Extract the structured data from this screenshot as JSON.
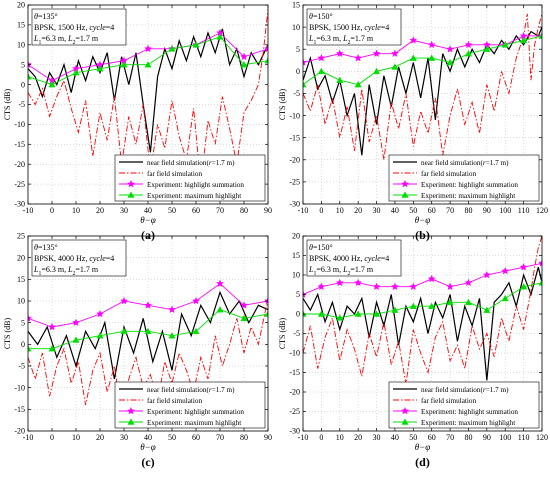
{
  "figure": {
    "background": "#ffffff"
  },
  "legend_entries": [
    {
      "key": "near",
      "pre": "near field simulation(",
      "ital": "r",
      "post": "=1.7 m)"
    },
    {
      "key": "far",
      "pre": "far field simulation",
      "ital": "",
      "post": ""
    },
    {
      "key": "hsum",
      "pre": "Experiment: highlight summation",
      "ital": "",
      "post": ""
    },
    {
      "key": "hmax",
      "pre": "Experiment: maximum highlight",
      "ital": "",
      "post": ""
    }
  ],
  "styles": {
    "near": {
      "color": "#000000",
      "dash": "",
      "marker": "none"
    },
    "far": {
      "color": "#ff0000",
      "dash": "6,2,1.5,2",
      "marker": "none"
    },
    "hsum": {
      "color": "#ff00ff",
      "dash": "",
      "marker": "star"
    },
    "hmax": {
      "color": "#00dd00",
      "dash": "",
      "marker": "triangle"
    }
  },
  "chart_data": [
    {
      "type": "line",
      "label": "(a)",
      "info": {
        "theta": "135°",
        "sig": "BPSK, 1500 Hz, ",
        "cycle": "4",
        "l1": "6.3 m",
        "l2": "1.7 m"
      },
      "xlabel": "θ−φ",
      "ylabel": "CTS (dB)",
      "xlim": [
        -10,
        90
      ],
      "ylim": [
        -30,
        20
      ],
      "xticks": [
        -10,
        0,
        10,
        20,
        30,
        40,
        50,
        60,
        70,
        80,
        90
      ],
      "yticks": [
        -30,
        -25,
        -20,
        -15,
        -10,
        -5,
        0,
        5,
        10,
        15,
        20
      ],
      "series": [
        {
          "key": "near",
          "x": [
            -10,
            -7,
            -4,
            -1,
            2,
            5,
            8,
            11,
            14,
            17,
            20,
            23,
            26,
            29,
            32,
            35,
            38,
            41,
            44,
            47,
            50,
            53,
            56,
            59,
            62,
            65,
            68,
            71,
            74,
            77,
            80,
            83,
            86,
            90
          ],
          "y": [
            4,
            2,
            -3,
            3,
            0,
            5,
            -2,
            6,
            1,
            7,
            3,
            8,
            -4,
            7,
            0,
            8,
            -5,
            -17,
            2,
            9,
            4,
            11,
            6,
            12,
            7,
            13,
            8,
            14,
            5,
            9,
            2,
            8,
            5,
            10
          ]
        },
        {
          "key": "far",
          "x": [
            -10,
            -7,
            -4,
            -1,
            2,
            5,
            8,
            11,
            14,
            17,
            20,
            23,
            26,
            29,
            32,
            35,
            38,
            41,
            44,
            47,
            50,
            53,
            56,
            59,
            62,
            65,
            68,
            71,
            74,
            77,
            80,
            83,
            86,
            88,
            90
          ],
          "y": [
            -2,
            -5,
            -1,
            -8,
            -3,
            1,
            -6,
            -12,
            -4,
            -18,
            -7,
            -14,
            -3,
            -20,
            -8,
            -15,
            -5,
            -22,
            -10,
            -16,
            -4,
            -13,
            -19,
            -6,
            -25,
            -9,
            -15,
            -3,
            -11,
            -20,
            -7,
            -4,
            0,
            8,
            19
          ]
        },
        {
          "key": "hsum",
          "x": [
            -10,
            0,
            10,
            20,
            30,
            40,
            50,
            60,
            70,
            80,
            90
          ],
          "y": [
            5,
            1,
            4,
            5,
            6,
            9,
            9,
            10,
            13,
            7,
            9
          ]
        },
        {
          "key": "hmax",
          "x": [
            -10,
            0,
            10,
            20,
            30,
            40,
            50,
            60,
            70,
            80,
            90
          ],
          "y": [
            2,
            0,
            3,
            4,
            5,
            5,
            9,
            10,
            12,
            5,
            6
          ]
        }
      ]
    },
    {
      "type": "line",
      "label": "(b)",
      "info": {
        "theta": "150°",
        "sig": "BPSK, 1500 Hz, ",
        "cycle": "4",
        "l1": "6.3 m",
        "l2": "1.7 m"
      },
      "xlabel": "θ−φ",
      "ylabel": "CTS (dB)",
      "xlim": [
        -10,
        120
      ],
      "ylim": [
        -30,
        15
      ],
      "xticks": [
        -10,
        0,
        10,
        20,
        30,
        40,
        50,
        60,
        70,
        80,
        90,
        100,
        110,
        120
      ],
      "yticks": [
        -30,
        -25,
        -20,
        -15,
        -10,
        -5,
        0,
        5,
        10,
        15
      ],
      "series": [
        {
          "key": "near",
          "x": [
            -10,
            -6,
            -2,
            2,
            6,
            10,
            14,
            18,
            22,
            26,
            30,
            34,
            38,
            42,
            46,
            50,
            54,
            58,
            62,
            66,
            70,
            74,
            78,
            82,
            86,
            90,
            94,
            98,
            102,
            106,
            110,
            114,
            118,
            120
          ],
          "y": [
            -2,
            3,
            -4,
            -1,
            -7,
            -2,
            -10,
            -5,
            -19,
            -3,
            -12,
            -1,
            -8,
            1,
            -5,
            2,
            -6,
            3,
            -11,
            4,
            0,
            5,
            1,
            5,
            2,
            6,
            4,
            7,
            5,
            8,
            6,
            9,
            8,
            10
          ]
        },
        {
          "key": "far",
          "x": [
            -10,
            -6,
            -2,
            2,
            6,
            10,
            14,
            18,
            22,
            26,
            30,
            34,
            38,
            42,
            46,
            50,
            54,
            58,
            62,
            66,
            70,
            74,
            78,
            82,
            86,
            90,
            94,
            98,
            102,
            106,
            110,
            112,
            114,
            116,
            118,
            120
          ],
          "y": [
            -5,
            -9,
            -3,
            -12,
            -6,
            -15,
            -8,
            -18,
            -4,
            -16,
            -10,
            -20,
            -7,
            -13,
            -5,
            -17,
            -9,
            -14,
            -6,
            -19,
            -10,
            -4,
            -12,
            -7,
            -14,
            -3,
            -9,
            0,
            -5,
            3,
            8,
            13,
            -2,
            6,
            10,
            13
          ]
        },
        {
          "key": "hsum",
          "x": [
            -10,
            0,
            10,
            20,
            30,
            40,
            50,
            60,
            70,
            80,
            90,
            100,
            110,
            120
          ],
          "y": [
            2,
            3,
            4,
            3,
            4,
            4,
            7,
            6,
            5,
            6,
            6,
            6,
            8,
            8
          ]
        },
        {
          "key": "hmax",
          "x": [
            -10,
            0,
            10,
            20,
            30,
            40,
            50,
            60,
            70,
            80,
            90,
            100,
            110,
            120
          ],
          "y": [
            -3,
            0,
            -2,
            -3,
            0,
            1,
            3,
            3,
            2,
            4,
            5,
            6,
            7,
            8
          ]
        }
      ]
    },
    {
      "type": "line",
      "label": "(c)",
      "info": {
        "theta": "135°",
        "sig": "BPSK, 4000 Hz, ",
        "cycle": "4",
        "l1": "6.3 m",
        "l2": "1.7 m"
      },
      "xlabel": "θ−φ",
      "ylabel": "CTS (dB)",
      "xlim": [
        -10,
        90
      ],
      "ylim": [
        -20,
        25
      ],
      "xticks": [
        -10,
        0,
        10,
        20,
        30,
        40,
        50,
        60,
        70,
        80,
        90
      ],
      "yticks": [
        -20,
        -15,
        -10,
        -5,
        0,
        5,
        10,
        15,
        20,
        25
      ],
      "series": [
        {
          "key": "near",
          "x": [
            -10,
            -6,
            -2,
            2,
            6,
            10,
            14,
            18,
            22,
            26,
            30,
            34,
            38,
            42,
            46,
            50,
            54,
            58,
            62,
            66,
            70,
            74,
            78,
            82,
            86,
            90
          ],
          "y": [
            3,
            0,
            4,
            -3,
            2,
            -5,
            3,
            -1,
            5,
            -8,
            4,
            -2,
            6,
            -4,
            3,
            -6,
            7,
            2,
            9,
            5,
            12,
            7,
            10,
            5,
            9,
            8
          ]
        },
        {
          "key": "far",
          "x": [
            -10,
            -7,
            -4,
            -1,
            2,
            5,
            8,
            11,
            14,
            17,
            20,
            23,
            26,
            29,
            32,
            35,
            38,
            41,
            44,
            47,
            50,
            53,
            56,
            59,
            62,
            65,
            68,
            71,
            74,
            77,
            80,
            83,
            86,
            89,
            90
          ],
          "y": [
            -3,
            -8,
            -2,
            -12,
            -5,
            -1,
            -9,
            -4,
            -14,
            -6,
            -2,
            -11,
            -5,
            -16,
            -8,
            -3,
            -10,
            -7,
            -13,
            -4,
            -9,
            -2,
            -6,
            -11,
            -3,
            -8,
            2,
            -5,
            0,
            6,
            -2,
            4,
            0,
            8,
            10
          ]
        },
        {
          "key": "hsum",
          "x": [
            -10,
            0,
            10,
            20,
            30,
            40,
            50,
            60,
            70,
            80,
            90
          ],
          "y": [
            6,
            4,
            5,
            7,
            10,
            9,
            8,
            10,
            14,
            9,
            10
          ]
        },
        {
          "key": "hmax",
          "x": [
            -10,
            0,
            10,
            20,
            30,
            40,
            50,
            60,
            70,
            80,
            90
          ],
          "y": [
            -1,
            -1,
            1,
            2,
            3,
            3,
            2,
            3,
            8,
            6,
            7
          ]
        }
      ]
    },
    {
      "type": "line",
      "label": "(d)",
      "info": {
        "theta": "150°",
        "sig": "BPSK, 4000 Hz, ",
        "cycle": "4",
        "l1": "6.3 m",
        "l2": "1.7 m"
      },
      "xlabel": "θ−φ",
      "ylabel": "CTS (dB)",
      "xlim": [
        -10,
        120
      ],
      "ylim": [
        -30,
        20
      ],
      "xticks": [
        -10,
        0,
        10,
        20,
        30,
        40,
        50,
        60,
        70,
        80,
        90,
        100,
        110,
        120
      ],
      "yticks": [
        -30,
        -25,
        -20,
        -15,
        -10,
        -5,
        0,
        5,
        10,
        15,
        20
      ],
      "series": [
        {
          "key": "near",
          "x": [
            -10,
            -6,
            -2,
            2,
            6,
            10,
            14,
            18,
            22,
            26,
            30,
            34,
            38,
            42,
            46,
            50,
            54,
            58,
            62,
            66,
            70,
            74,
            78,
            82,
            86,
            90,
            94,
            98,
            102,
            106,
            110,
            114,
            118,
            120
          ],
          "y": [
            4,
            1,
            5,
            -2,
            3,
            -4,
            2,
            0,
            4,
            -6,
            3,
            -3,
            5,
            -8,
            2,
            -2,
            4,
            -5,
            3,
            -1,
            5,
            -7,
            2,
            -3,
            4,
            -17,
            3,
            5,
            8,
            2,
            10,
            5,
            12,
            8
          ]
        },
        {
          "key": "far",
          "x": [
            -10,
            -6,
            -2,
            2,
            6,
            10,
            14,
            18,
            22,
            26,
            30,
            34,
            38,
            42,
            46,
            50,
            54,
            58,
            62,
            66,
            70,
            74,
            78,
            82,
            86,
            90,
            94,
            98,
            102,
            106,
            110,
            114,
            116,
            118,
            120
          ],
          "y": [
            -10,
            -3,
            -14,
            -6,
            -1,
            -12,
            -4,
            -9,
            -16,
            -5,
            -11,
            -2,
            -13,
            -7,
            -18,
            -4,
            -10,
            -15,
            -6,
            -2,
            -12,
            -8,
            -14,
            -3,
            -9,
            -5,
            -11,
            -1,
            -7,
            2,
            -4,
            6,
            12,
            17,
            20
          ]
        },
        {
          "key": "hsum",
          "x": [
            -10,
            0,
            10,
            20,
            30,
            40,
            50,
            60,
            70,
            80,
            90,
            100,
            110,
            120
          ],
          "y": [
            5,
            7,
            8,
            8,
            7,
            7,
            7,
            9,
            7,
            8,
            10,
            11,
            12,
            13
          ]
        },
        {
          "key": "hmax",
          "x": [
            -10,
            0,
            10,
            20,
            30,
            40,
            50,
            60,
            70,
            80,
            90,
            100,
            110,
            120
          ],
          "y": [
            0,
            0,
            -1,
            0,
            0,
            1,
            2,
            2,
            3,
            3,
            1,
            4,
            7,
            8
          ]
        }
      ]
    }
  ]
}
